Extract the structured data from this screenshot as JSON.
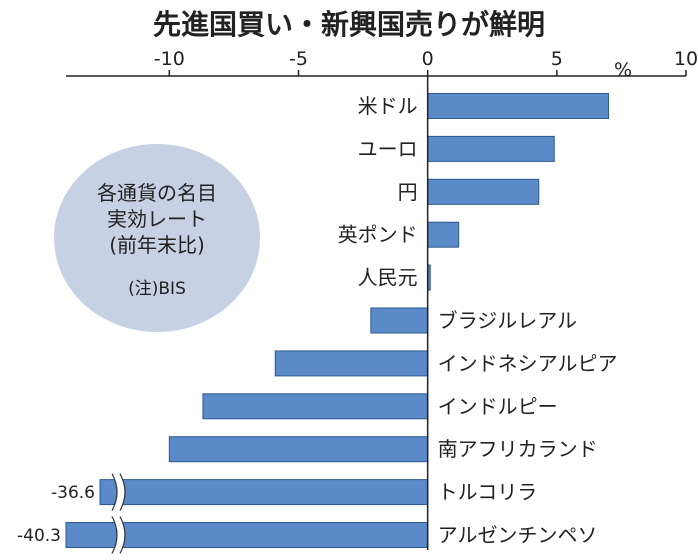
{
  "chart_data": {
    "type": "bar",
    "orientation": "horizontal",
    "title": "先進国買い・新興国売りが鮮明",
    "unit": "%",
    "xlim": [
      -14,
      10
    ],
    "ticks": [
      -10,
      -5,
      0,
      5,
      10
    ],
    "tick_labels": [
      "-10",
      "-5",
      "0",
      "5",
      "10"
    ],
    "categories": [
      "米ドル",
      "ユーロ",
      "円",
      "英ポンド",
      "人民元",
      "ブラジルレアル",
      "インドネシアルピア",
      "インドルピー",
      "南アフリカランド",
      "トルコリラ",
      "アルゼンチンペソ"
    ],
    "values": [
      7.0,
      4.9,
      4.3,
      1.2,
      0.1,
      -2.2,
      -5.9,
      -8.7,
      -10.0,
      -36.6,
      -40.3
    ],
    "broken": [
      false,
      false,
      false,
      false,
      false,
      false,
      false,
      false,
      false,
      true,
      true
    ],
    "value_labels": [
      "",
      "",
      "",
      "",
      "",
      "",
      "",
      "",
      "",
      "-36.6",
      "-40.3"
    ],
    "note": {
      "lines": [
        "各通貨の名目",
        "実効レート",
        "(前年末比)"
      ],
      "source": "(注)BIS"
    },
    "colors": {
      "bar": "#5b8ac8",
      "bar_stroke": "#2f5a8f",
      "note_fill": "#c6d1e4",
      "axis": "#222222"
    }
  }
}
